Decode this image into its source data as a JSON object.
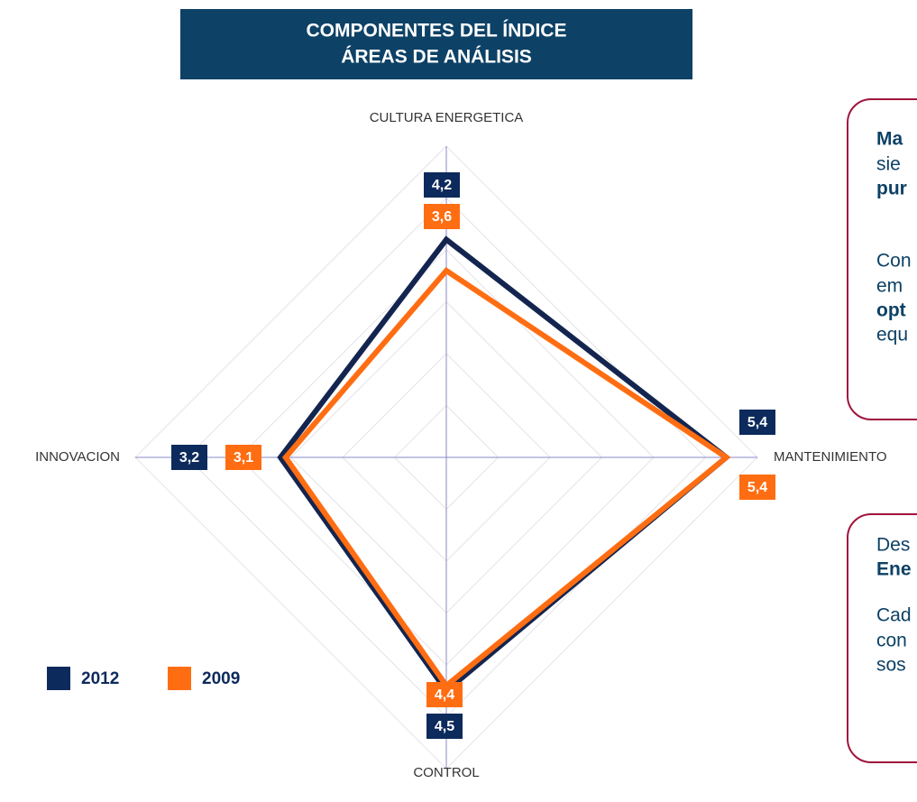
{
  "chart_data": {
    "type": "radar",
    "title": [
      "COMPONENTES DEL ÍNDICE",
      "ÁREAS DE ANÁLISIS"
    ],
    "categories": [
      "CULTURA ENERGETICA",
      "MANTENIMIENTO",
      "CONTROL",
      "INNOVACION"
    ],
    "series": [
      {
        "name": "2012",
        "color": "#13254f",
        "label_color": "#0d2a5c",
        "values": [
          4.2,
          5.4,
          4.5,
          3.2
        ],
        "value_labels": [
          "4,2",
          "5,4",
          "4,5",
          "3,2"
        ]
      },
      {
        "name": "2009",
        "color": "#ff6d12",
        "label_color": "#ff6d12",
        "values": [
          3.6,
          5.4,
          4.4,
          3.1
        ],
        "value_labels": [
          "3,6",
          "5,4",
          "4,4",
          "3,1"
        ]
      }
    ],
    "rlim": [
      0,
      6
    ],
    "rticks": [
      1,
      2,
      3,
      4,
      5,
      6
    ],
    "grid": true
  },
  "callouts": [
    {
      "lines": [
        {
          "text": "Ma",
          "bold": true
        },
        {
          "text": "sie",
          "bold": false
        },
        {
          "text": "pur",
          "bold": true
        },
        {
          "text": "Con",
          "bold": false
        },
        {
          "text": "em",
          "bold": false
        },
        {
          "text": "opt",
          "bold": true
        },
        {
          "text": "equ",
          "bold": false
        }
      ]
    },
    {
      "lines": [
        {
          "text": "Des",
          "bold": false
        },
        {
          "text": "Ene",
          "bold": true
        },
        {
          "text": "Cad",
          "bold": false
        },
        {
          "text": "con",
          "bold": false
        },
        {
          "text": "sos",
          "bold": false
        }
      ]
    }
  ]
}
